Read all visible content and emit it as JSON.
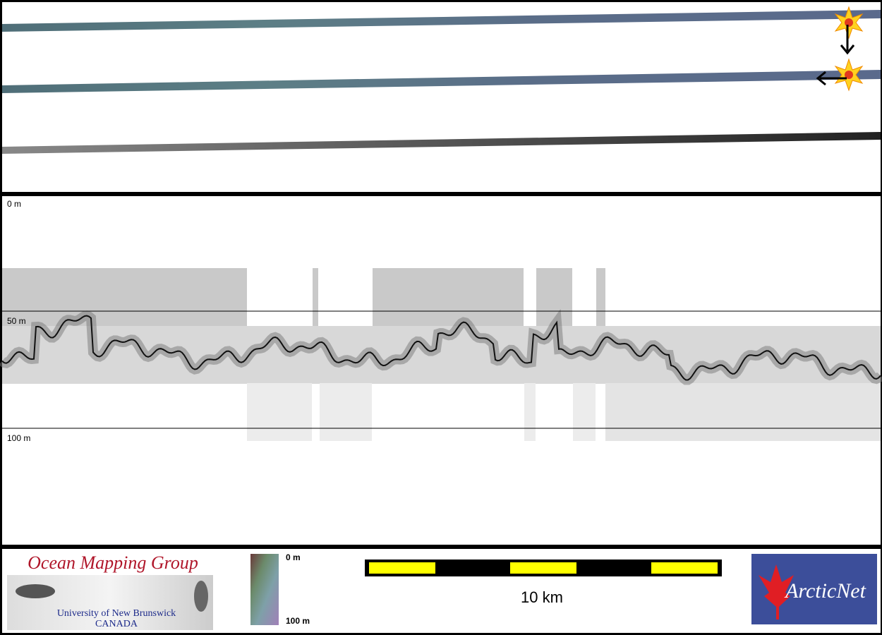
{
  "profile": {
    "depth_labels": [
      "0 m",
      "50 m",
      "100 m"
    ]
  },
  "footer": {
    "logo": {
      "title": "Ocean Mapping Group",
      "subtitle": "University of New Brunswick",
      "country": "CANADA"
    },
    "colorbar": {
      "top_label": "0 m",
      "bottom_label": "100 m"
    },
    "scale_bar": {
      "label": "10 km"
    },
    "partner": {
      "name": "ArcticNet"
    }
  }
}
